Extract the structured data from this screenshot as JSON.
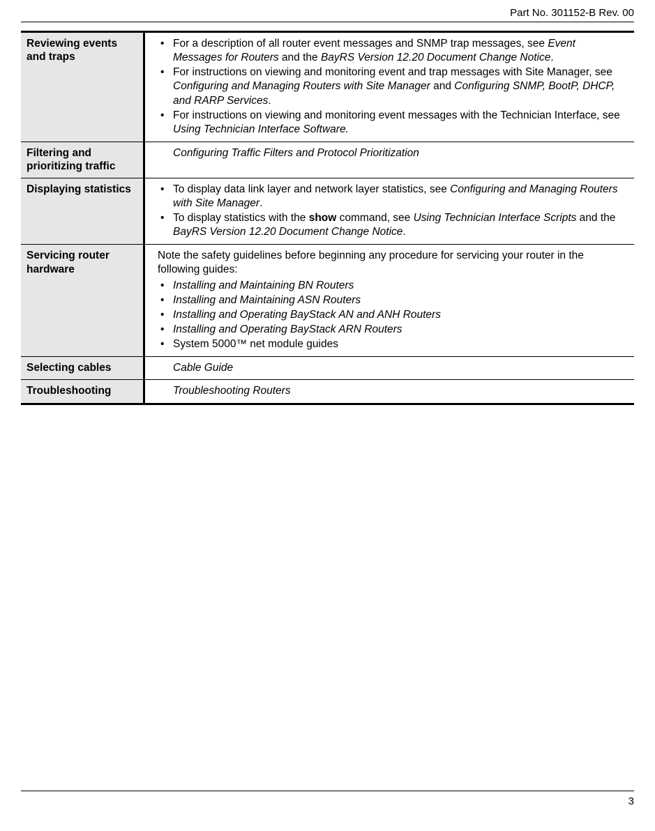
{
  "header": {
    "part": "Part No. 301152-B Rev. 00"
  },
  "rows": [
    {
      "label": "Reviewing events and traps",
      "bullets": [
        {
          "pre": "For a description of all router event messages and SNMP trap messages, see ",
          "i1": "Event Messages for Routers",
          "mid1": " and the ",
          "i2": "BayRS Version 12.20 Document Change Notice",
          "post": "."
        },
        {
          "pre": "For instructions on viewing and monitoring event and trap messages with Site Manager, see ",
          "i1": "Configuring and Managing Routers with Site Manager",
          "mid1": " and ",
          "i2": "Configuring SNMP, BootP, DHCP, and RARP Services",
          "post": "."
        },
        {
          "pre": "For instructions on viewing and monitoring event messages with the Technician Interface, see ",
          "i1": "Using Technician Interface Software.",
          "mid1": "",
          "i2": "",
          "post": ""
        }
      ]
    },
    {
      "label": "Filtering and prioritizing traffic",
      "plain_italic": "Configuring Traffic Filters and Protocol Prioritization"
    },
    {
      "label": "Displaying statistics",
      "bullets": [
        {
          "pre": "To display data link layer and network layer statistics, see ",
          "i1": "Configuring and Managing Routers with Site Manager",
          "mid1": "",
          "i2": "",
          "post": "."
        },
        {
          "pre": "To display statistics with the ",
          "b1": "show",
          "mid0": " command, see ",
          "i1": "Using Technician Interface Scripts",
          "mid1": " and the ",
          "i2": "BayRS Version 12.20 Document Change Notice",
          "post": "."
        }
      ]
    },
    {
      "label": "Servicing router hardware",
      "intro": "Note the safety guidelines before beginning any procedure for servicing your router in the following guides:",
      "bullets": [
        {
          "i1": "Installing and Maintaining BN Routers"
        },
        {
          "i1": "Installing and Maintaining ASN Routers"
        },
        {
          "i1": "Installing and Operating BayStack AN and ANH Routers"
        },
        {
          "i1": "Installing and Operating BayStack ARN Routers"
        },
        {
          "pre": "System 5000™ net module guides"
        }
      ]
    },
    {
      "label": "Selecting cables",
      "plain_italic": "Cable Guide"
    },
    {
      "label": "Troubleshooting",
      "plain_italic": "Troubleshooting Routers"
    }
  ],
  "footer": {
    "page": "3"
  }
}
